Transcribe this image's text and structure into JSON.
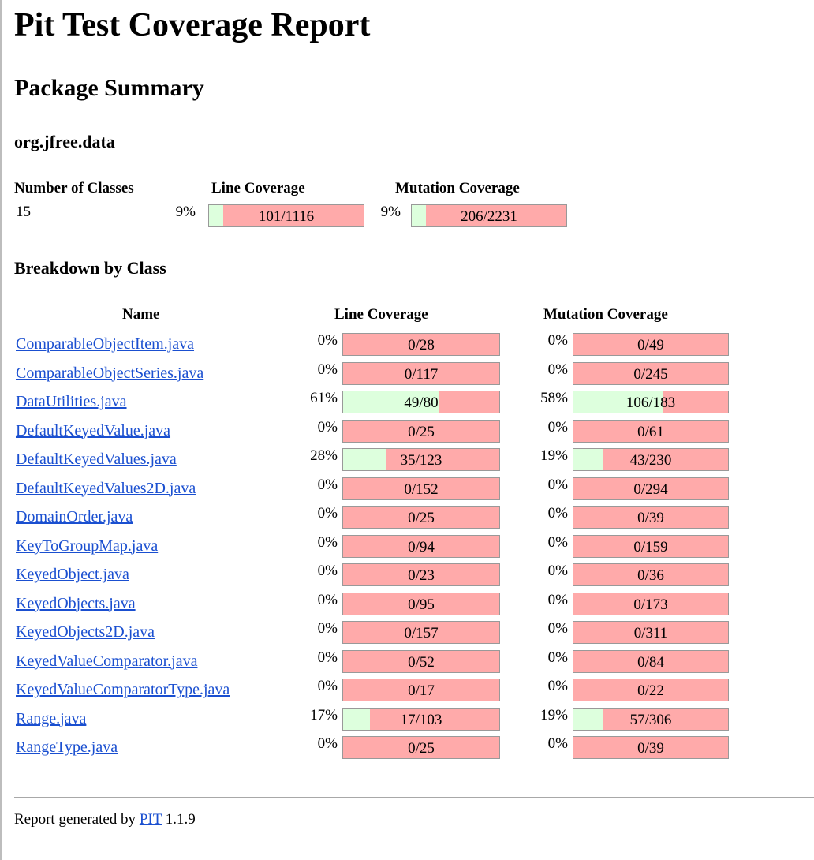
{
  "title": "Pit Test Coverage Report",
  "subtitle": "Package Summary",
  "package_name": "org.jfree.data",
  "summary": {
    "headers": {
      "classes": "Number of Classes",
      "line": "Line Coverage",
      "mutation": "Mutation Coverage"
    },
    "classes": "15",
    "line": {
      "pct": "9%",
      "ratio": "101/1116",
      "fraction": 0.09
    },
    "mutation": {
      "pct": "9%",
      "ratio": "206/2231",
      "fraction": 0.09
    }
  },
  "breakdown": {
    "title": "Breakdown by Class",
    "headers": {
      "name": "Name",
      "line": "Line Coverage",
      "mutation": "Mutation Coverage"
    },
    "rows": [
      {
        "name": "ComparableObjectItem.java",
        "line_pct": "0%",
        "line_ratio": "0/28",
        "line_fraction": 0.0,
        "mut_pct": "0%",
        "mut_ratio": "0/49",
        "mut_fraction": 0.0
      },
      {
        "name": "ComparableObjectSeries.java",
        "line_pct": "0%",
        "line_ratio": "0/117",
        "line_fraction": 0.0,
        "mut_pct": "0%",
        "mut_ratio": "0/245",
        "mut_fraction": 0.0
      },
      {
        "name": "DataUtilities.java",
        "line_pct": "61%",
        "line_ratio": "49/80",
        "line_fraction": 0.61,
        "mut_pct": "58%",
        "mut_ratio": "106/183",
        "mut_fraction": 0.58
      },
      {
        "name": "DefaultKeyedValue.java",
        "line_pct": "0%",
        "line_ratio": "0/25",
        "line_fraction": 0.0,
        "mut_pct": "0%",
        "mut_ratio": "0/61",
        "mut_fraction": 0.0
      },
      {
        "name": "DefaultKeyedValues.java",
        "line_pct": "28%",
        "line_ratio": "35/123",
        "line_fraction": 0.28,
        "mut_pct": "19%",
        "mut_ratio": "43/230",
        "mut_fraction": 0.19
      },
      {
        "name": "DefaultKeyedValues2D.java",
        "line_pct": "0%",
        "line_ratio": "0/152",
        "line_fraction": 0.0,
        "mut_pct": "0%",
        "mut_ratio": "0/294",
        "mut_fraction": 0.0
      },
      {
        "name": "DomainOrder.java",
        "line_pct": "0%",
        "line_ratio": "0/25",
        "line_fraction": 0.0,
        "mut_pct": "0%",
        "mut_ratio": "0/39",
        "mut_fraction": 0.0
      },
      {
        "name": "KeyToGroupMap.java",
        "line_pct": "0%",
        "line_ratio": "0/94",
        "line_fraction": 0.0,
        "mut_pct": "0%",
        "mut_ratio": "0/159",
        "mut_fraction": 0.0
      },
      {
        "name": "KeyedObject.java",
        "line_pct": "0%",
        "line_ratio": "0/23",
        "line_fraction": 0.0,
        "mut_pct": "0%",
        "mut_ratio": "0/36",
        "mut_fraction": 0.0
      },
      {
        "name": "KeyedObjects.java",
        "line_pct": "0%",
        "line_ratio": "0/95",
        "line_fraction": 0.0,
        "mut_pct": "0%",
        "mut_ratio": "0/173",
        "mut_fraction": 0.0
      },
      {
        "name": "KeyedObjects2D.java",
        "line_pct": "0%",
        "line_ratio": "0/157",
        "line_fraction": 0.0,
        "mut_pct": "0%",
        "mut_ratio": "0/311",
        "mut_fraction": 0.0
      },
      {
        "name": "KeyedValueComparator.java",
        "line_pct": "0%",
        "line_ratio": "0/52",
        "line_fraction": 0.0,
        "mut_pct": "0%",
        "mut_ratio": "0/84",
        "mut_fraction": 0.0
      },
      {
        "name": "KeyedValueComparatorType.java",
        "line_pct": "0%",
        "line_ratio": "0/17",
        "line_fraction": 0.0,
        "mut_pct": "0%",
        "mut_ratio": "0/22",
        "mut_fraction": 0.0
      },
      {
        "name": "Range.java",
        "line_pct": "17%",
        "line_ratio": "17/103",
        "line_fraction": 0.17,
        "mut_pct": "19%",
        "mut_ratio": "57/306",
        "mut_fraction": 0.19
      },
      {
        "name": "RangeType.java",
        "line_pct": "0%",
        "line_ratio": "0/25",
        "line_fraction": 0.0,
        "mut_pct": "0%",
        "mut_ratio": "0/39",
        "mut_fraction": 0.0
      }
    ]
  },
  "footer": {
    "prefix": "Report generated by",
    "link": "PIT",
    "version": "1.1.9"
  },
  "colors": {
    "covered": "#ddffdd",
    "uncovered": "#ffaaaa",
    "link": "#1a4fd0"
  }
}
